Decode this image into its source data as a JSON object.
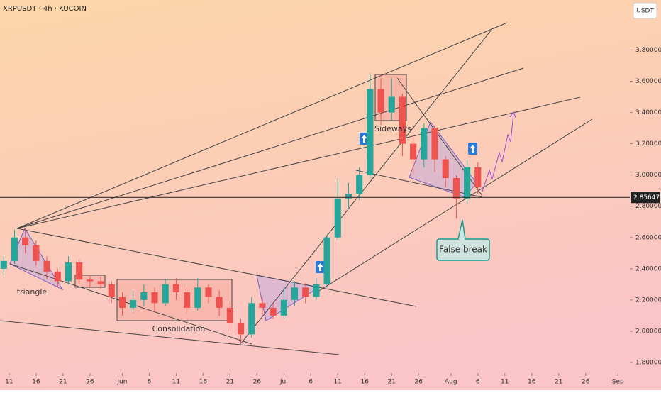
{
  "chart_data": {
    "type": "candlestick",
    "title": "XRPUSDT · 4h · KUCOIN",
    "currency": "USDT",
    "x": [
      10,
      12,
      14,
      16,
      18,
      20,
      22,
      24,
      26,
      28,
      30,
      32,
      34,
      36,
      38,
      40,
      42,
      44,
      46,
      48,
      50,
      52,
      54,
      56,
      58,
      60,
      62,
      64,
      66,
      68,
      70,
      72,
      74,
      76,
      78,
      80,
      82,
      84,
      86,
      88,
      90,
      92,
      94,
      96,
      98
    ],
    "open": [
      2.4,
      2.45,
      2.6,
      2.55,
      2.45,
      2.38,
      2.32,
      2.44,
      2.33,
      2.32,
      2.3,
      2.22,
      2.15,
      2.2,
      2.25,
      2.18,
      2.3,
      2.25,
      2.15,
      2.28,
      2.22,
      2.15,
      2.05,
      1.98,
      2.18,
      2.15,
      2.1,
      2.2,
      2.28,
      2.22,
      2.3,
      2.6,
      2.85,
      2.88,
      3.0,
      3.55,
      3.4,
      3.5,
      3.2,
      3.1,
      3.3,
      3.1,
      2.98,
      2.85,
      3.05
    ],
    "high": [
      2.48,
      2.65,
      2.66,
      2.58,
      2.48,
      2.4,
      2.48,
      2.46,
      2.36,
      2.35,
      2.32,
      2.25,
      2.26,
      2.3,
      2.28,
      2.33,
      2.34,
      2.28,
      2.34,
      2.3,
      2.26,
      2.18,
      2.08,
      2.22,
      2.22,
      2.18,
      2.28,
      2.32,
      2.31,
      2.34,
      2.62,
      2.98,
      2.95,
      3.05,
      3.65,
      3.62,
      3.62,
      3.52,
      3.25,
      3.33,
      3.32,
      3.12,
      3.0,
      3.1,
      3.08
    ],
    "low": [
      2.36,
      2.43,
      2.5,
      2.42,
      2.33,
      2.28,
      2.3,
      2.3,
      2.28,
      2.27,
      2.18,
      2.1,
      2.12,
      2.16,
      2.12,
      2.16,
      2.2,
      2.12,
      2.13,
      2.18,
      2.1,
      2.0,
      1.92,
      1.96,
      2.1,
      2.08,
      2.08,
      2.16,
      2.18,
      2.2,
      2.28,
      2.58,
      2.78,
      2.84,
      2.98,
      3.32,
      3.35,
      3.12,
      3.0,
      3.05,
      3.02,
      2.92,
      2.72,
      2.82,
      2.88
    ],
    "close": [
      2.45,
      2.6,
      2.55,
      2.45,
      2.38,
      2.32,
      2.44,
      2.33,
      2.32,
      2.3,
      2.22,
      2.15,
      2.2,
      2.25,
      2.18,
      2.3,
      2.25,
      2.15,
      2.28,
      2.22,
      2.15,
      2.05,
      1.98,
      2.18,
      2.15,
      2.1,
      2.2,
      2.28,
      2.22,
      2.3,
      2.6,
      2.85,
      2.88,
      3.0,
      3.55,
      3.4,
      3.5,
      3.2,
      3.1,
      3.3,
      3.1,
      2.98,
      2.85,
      3.05,
      2.92
    ],
    "up_color": "#26a69a",
    "down_color": "#ef5350",
    "xlim": [
      9.3,
      126.2
    ],
    "xticks": [
      {
        "value": 11,
        "label": "11"
      },
      {
        "value": 16,
        "label": "16"
      },
      {
        "value": 21,
        "label": "21"
      },
      {
        "value": 26,
        "label": "26"
      },
      {
        "value": 32,
        "label": "Jun"
      },
      {
        "value": 37,
        "label": "6"
      },
      {
        "value": 42,
        "label": "11"
      },
      {
        "value": 47,
        "label": "16"
      },
      {
        "value": 52,
        "label": "21"
      },
      {
        "value": 57,
        "label": "26"
      },
      {
        "value": 62,
        "label": "Jul"
      },
      {
        "value": 67,
        "label": "6"
      },
      {
        "value": 72,
        "label": "11"
      },
      {
        "value": 77,
        "label": "16"
      },
      {
        "value": 82,
        "label": "21"
      },
      {
        "value": 87,
        "label": "26"
      },
      {
        "value": 93,
        "label": "Aug"
      },
      {
        "value": 98,
        "label": "6"
      },
      {
        "value": 103,
        "label": "11"
      },
      {
        "value": 108,
        "label": "16"
      },
      {
        "value": 113,
        "label": "21"
      },
      {
        "value": 118,
        "label": "26"
      },
      {
        "value": 124,
        "label": "Sep"
      }
    ],
    "ylim": [
      1.75,
      4.12
    ],
    "yticks": [
      {
        "value": 1.8,
        "label": "1.80000"
      },
      {
        "value": 2.0,
        "label": "2.00000"
      },
      {
        "value": 2.2,
        "label": "2.20000"
      },
      {
        "value": 2.4,
        "label": "2.40000"
      },
      {
        "value": 2.6,
        "label": "2.60000"
      },
      {
        "value": 2.8,
        "label": "2.80000"
      },
      {
        "value": 3.0,
        "label": "3.00000"
      },
      {
        "value": 3.2,
        "label": "3.20000"
      },
      {
        "value": 3.4,
        "label": "3.40000"
      },
      {
        "value": 3.6,
        "label": "3.60000"
      },
      {
        "value": 3.8,
        "label": "3.80000"
      }
    ],
    "price_line": {
      "value": 2.85647,
      "label": "2.85647"
    },
    "annotations": {
      "triangle": "triangle",
      "consolidation": "Consolidation",
      "sideways": "Sideways",
      "false_break": "False break"
    }
  }
}
